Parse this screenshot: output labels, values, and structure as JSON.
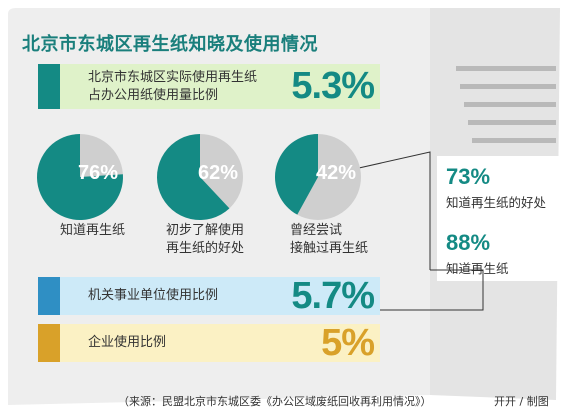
{
  "title": "北京市东城区再生纸知晓及使用情况",
  "colors": {
    "teal": "#148a84",
    "gray": "#cfcfcf",
    "blue": "#2f8fc4",
    "gold": "#d9a129",
    "green_bg": "#dff2c9",
    "blue_bg": "#cdeaf8",
    "yellow_bg": "#fbf1c4"
  },
  "bars": [
    {
      "line1": "北京市东城区实际使用再生纸",
      "line2": "占办公用纸使用量比例",
      "value": "5.3%"
    },
    {
      "line1": "机关事业单位使用比例",
      "line2": "",
      "value": "5.7%"
    },
    {
      "line1": "企业使用比例",
      "line2": "",
      "value": "5%"
    }
  ],
  "chart_data": {
    "type": "pie",
    "pies": [
      {
        "percent": 76,
        "label": "76%",
        "caption1": "知道再生纸",
        "caption2": ""
      },
      {
        "percent": 62,
        "label": "62%",
        "caption1": "初步了解使用",
        "caption2": "再生纸的好处"
      },
      {
        "percent": 42,
        "label": "42%",
        "caption1": "曾经尝试",
        "caption2": "接触过再生纸"
      }
    ],
    "side": [
      {
        "value": "73%",
        "text": "知道再生纸的好处"
      },
      {
        "value": "88%",
        "text": "知道再生纸"
      }
    ]
  },
  "source": "（来源：民盟北京市东城区委《办公区域废纸回收再利用情况》）",
  "credit": "开开 / 制图"
}
